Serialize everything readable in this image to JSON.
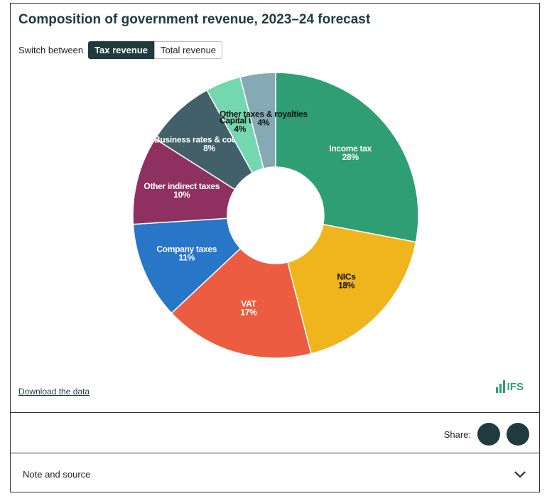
{
  "chart_data": {
    "type": "pie",
    "title": "Composition of government revenue, 2023–24 forecast",
    "categories": [
      "Income tax",
      "NICs",
      "VAT",
      "Company taxes",
      "Other indirect taxes",
      "Business rates & council tax",
      "Capital tax",
      "Other taxes & royalties"
    ],
    "values": [
      28,
      18,
      17,
      11,
      10,
      8,
      4,
      4
    ],
    "value_labels": [
      "28%",
      "18%",
      "17%",
      "11%",
      "10%",
      "8%",
      "4%",
      "4%"
    ],
    "colors": [
      "#2f9e74",
      "#f0b41c",
      "#ec5c40",
      "#2876c8",
      "#8f3160",
      "#42606a",
      "#74d7b0",
      "#86aab5"
    ],
    "donut": true
  },
  "ui": {
    "switch_label": "Switch between",
    "buttons": [
      "Tax revenue",
      "Total revenue"
    ],
    "download": "Download the data",
    "logo": "IFS",
    "share": "Share:",
    "note": "Note and source"
  }
}
